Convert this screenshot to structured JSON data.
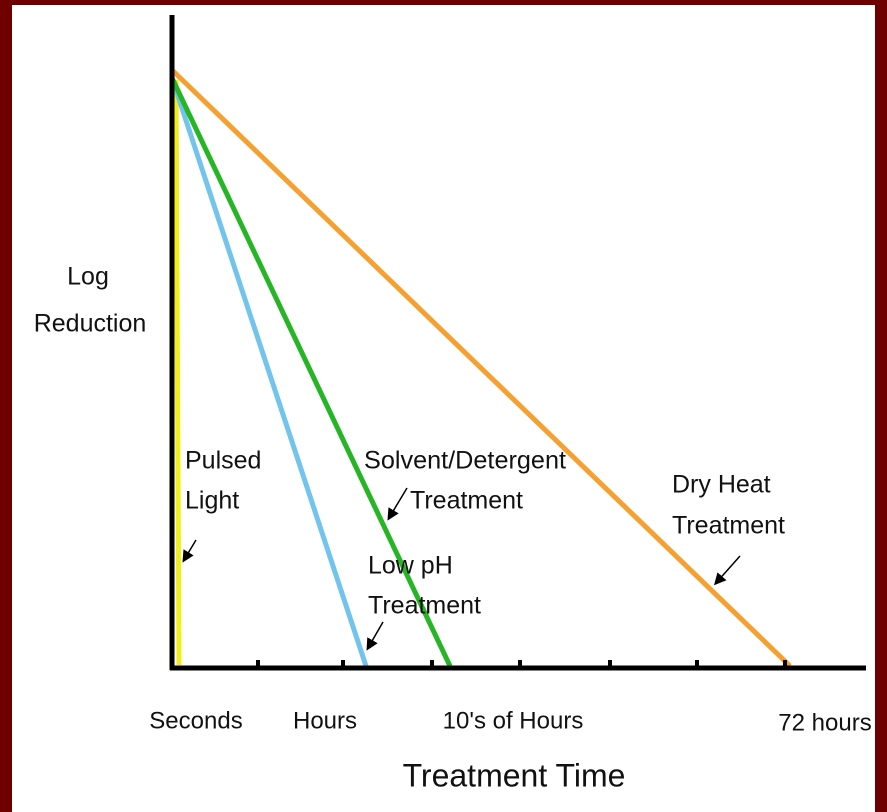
{
  "y_axis_label": [
    "Log",
    "Reduction"
  ],
  "x_axis_label": "Treatment Time",
  "x_labels": [
    "Seconds",
    "Hours",
    "10's of Hours",
    "72 hours"
  ],
  "annotations": {
    "pulsed_light": [
      "Pulsed",
      "Light"
    ],
    "solvent_detergent": [
      "Solvent/Detergent",
      "Treatment"
    ],
    "low_ph": [
      "Low pH",
      "Treatment"
    ],
    "dry_heat": [
      "Dry Heat",
      "Treatment"
    ]
  }
}
